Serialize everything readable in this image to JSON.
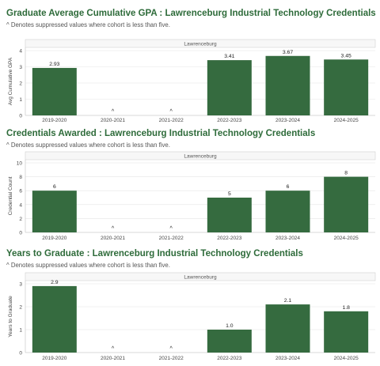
{
  "colors": {
    "bar": "#356b3f",
    "title": "#2e6b3a",
    "grid": "#e6e6e6",
    "axis": "#d0d0d0",
    "text": "#444444"
  },
  "chart_data": [
    {
      "type": "bar",
      "title": "Graduate Average Cumulative GPA : Lawrenceburg Industrial Technology Credentials",
      "subtitle": "^ Denotes suppressed values where cohort is less than five.",
      "panel_header": "Lawrenceburg",
      "ylabel": "Avg Cumulative GPA",
      "xlabel": "",
      "ylim": [
        0,
        4
      ],
      "yticks": [
        0,
        1,
        2,
        3,
        4
      ],
      "grid": true,
      "categories": [
        "2019-2020",
        "2020-2021",
        "2021-2022",
        "2022-2023",
        "2023-2024",
        "2024-2025"
      ],
      "values": [
        2.93,
        null,
        null,
        3.41,
        3.67,
        3.45
      ],
      "labels": [
        "2.93",
        "^",
        "^",
        "3.41",
        "3.67",
        "3.45"
      ]
    },
    {
      "type": "bar",
      "title": "Credentials Awarded : Lawrenceburg Industrial Technology Credentials",
      "subtitle": "^ Denotes suppressed values where cohort is less than five.",
      "panel_header": "Lawrenceburg",
      "ylabel": "Credential Count",
      "xlabel": "",
      "ylim": [
        0,
        10
      ],
      "yticks": [
        0,
        2,
        4,
        6,
        8,
        10
      ],
      "grid": true,
      "categories": [
        "2019-2020",
        "2020-2021",
        "2021-2022",
        "2022-2023",
        "2023-2024",
        "2024-2025"
      ],
      "values": [
        6,
        null,
        null,
        5,
        6,
        8
      ],
      "labels": [
        "6",
        "^",
        "^",
        "5",
        "6",
        "8"
      ]
    },
    {
      "type": "bar",
      "title": "Years to Graduate : Lawrenceburg Industrial Technology Credentials",
      "subtitle": "^ Denotes suppressed values where cohort is less than five.",
      "panel_header": "Lawrenceburg",
      "ylabel": "Years to Graduate",
      "xlabel": "",
      "ylim": [
        0,
        3
      ],
      "yticks": [
        0,
        1,
        2,
        3
      ],
      "grid": true,
      "categories": [
        "2019-2020",
        "2020-2021",
        "2021-2022",
        "2022-2023",
        "2023-2024",
        "2024-2025"
      ],
      "values": [
        2.9,
        null,
        null,
        1.0,
        2.1,
        1.8
      ],
      "labels": [
        "2.9",
        "^",
        "^",
        "1.0",
        "2.1",
        "1.8"
      ]
    }
  ]
}
